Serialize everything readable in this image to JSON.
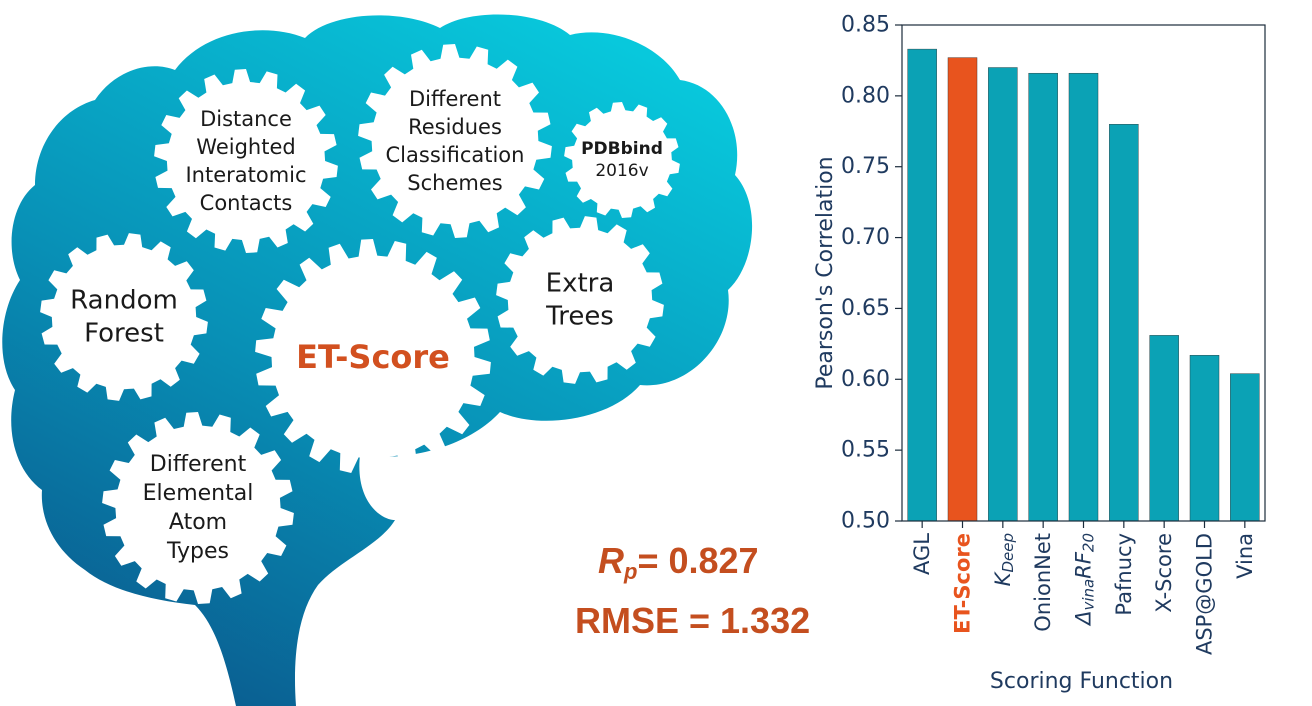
{
  "brain": {
    "gear_labels": {
      "distance": [
        "Distance",
        "Weighted",
        "Interatomic",
        "Contacts"
      ],
      "residues": [
        "Different",
        "Residues",
        "Classification",
        "Schemes"
      ],
      "pdbbind": [
        "PDBbind",
        "2016v"
      ],
      "random_forest": [
        "Random",
        "Forest"
      ],
      "et_score": [
        "ET-Score"
      ],
      "extra_trees": [
        "Extra",
        "Trees"
      ],
      "elemental": [
        "Different",
        "Elemental",
        "Atom",
        "Types"
      ]
    },
    "colors": {
      "top": "#08c4d8",
      "bottom": "#0a5a8e",
      "accent": "#d2501f"
    }
  },
  "metrics": {
    "rp_symbol": "R",
    "rp_subscript": "p",
    "rp_value": "= 0.827",
    "rmse": "RMSE = 1.332"
  },
  "chart_data": {
    "type": "bar",
    "categories": [
      "AGL",
      "ET-Score",
      "K_Deep",
      "OnionNet",
      "Δ_vinaRF_20",
      "Pafnucy",
      "X-Score",
      "ASP@GOLD",
      "Vina"
    ],
    "category_display": [
      {
        "base": "AGL"
      },
      {
        "base": "ET-Score",
        "bold": true,
        "color": "#e8541e"
      },
      {
        "base": "K",
        "sub": "Deep",
        "italic": true
      },
      {
        "base": "OnionNet"
      },
      {
        "base": "Δ",
        "sub": "vina",
        "base2": "RF",
        "sub2": "20",
        "italic": true
      },
      {
        "base": "Pafnucy"
      },
      {
        "base": "X-Score"
      },
      {
        "base": "ASP@GOLD"
      },
      {
        "base": "Vina"
      }
    ],
    "values": [
      0.833,
      0.827,
      0.82,
      0.816,
      0.816,
      0.78,
      0.631,
      0.617,
      0.604
    ],
    "bar_colors": [
      "#0ba2b5",
      "#e8541e",
      "#0ba2b5",
      "#0ba2b5",
      "#0ba2b5",
      "#0ba2b5",
      "#0ba2b5",
      "#0ba2b5",
      "#0ba2b5"
    ],
    "xlabel": "Scoring Function",
    "ylabel": "Pearson's Correlation",
    "ylim": [
      0.5,
      0.85
    ],
    "yticks": [
      "0.50",
      "0.55",
      "0.60",
      "0.65",
      "0.70",
      "0.75",
      "0.80",
      "0.85"
    ],
    "grid": false
  }
}
